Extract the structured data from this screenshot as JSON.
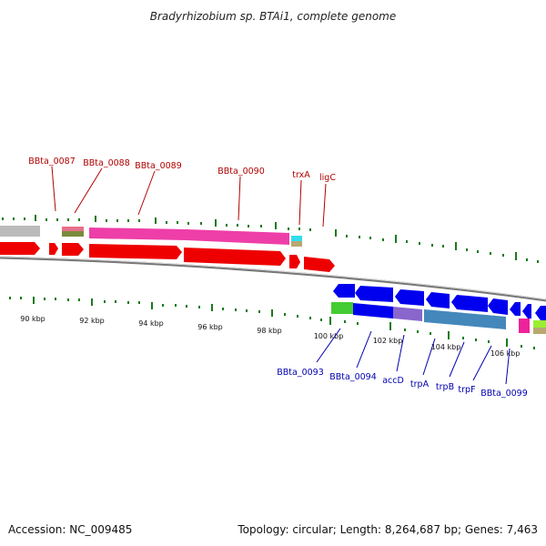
{
  "title": "Bradyrhizobium sp. BTAi1, complete genome",
  "footer": {
    "accession": "Accession: NC_009485",
    "summary": "Topology: circular; Length: 8,264,687 bp; Genes: 7,463"
  },
  "colors": {
    "forward_gene": "#ee0000",
    "reverse_gene": "#0000ee",
    "backbone": "#888888",
    "tick": "#1a7a1a",
    "label_top": "#b00000",
    "label_bottom": "#0000b0"
  },
  "ticks": [
    "90 kbp",
    "92 kbp",
    "94 kbp",
    "96 kbp",
    "98 kbp",
    "100 kbp",
    "102 kbp",
    "104 kbp",
    "106 kbp"
  ],
  "genes_top": [
    "BBta_0087",
    "BBta_0088",
    "BBta_0089",
    "BBta_0090",
    "trxA",
    "ligC"
  ],
  "genes_bottom": [
    "BBta_0093",
    "BBta_0094",
    "accD",
    "trpA",
    "trpB",
    "trpF",
    "BBta_0099"
  ]
}
